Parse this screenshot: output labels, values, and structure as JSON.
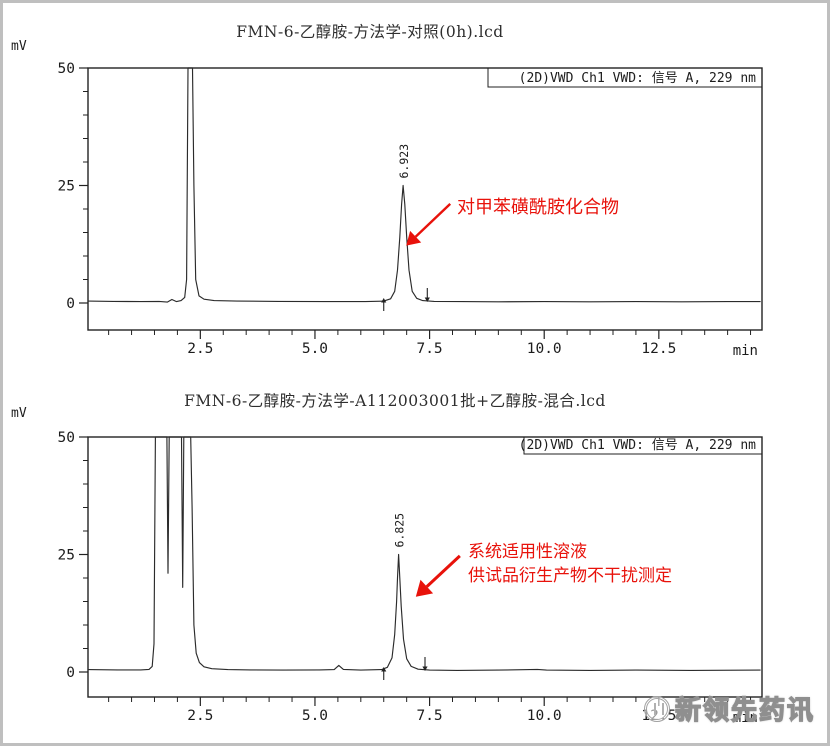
{
  "watermark": {
    "text": "新领先药讯"
  },
  "chart_data": [
    {
      "type": "line",
      "title": "FMN-6-乙醇胺-方法学-对照(0h).lcd",
      "signal_label": "(2D)VWD Ch1 VWD: 信号 A, 229 nm",
      "xlabel": "min",
      "ylabel": "mV",
      "xlim": [
        0.05,
        14.75
      ],
      "ylim": [
        0,
        50
      ],
      "grid": false,
      "xticks": {
        "major": [
          {
            "v": 2.5,
            "label": "2.5"
          },
          {
            "v": 5.0,
            "label": "5.0"
          },
          {
            "v": 7.5,
            "label": "7.5"
          },
          {
            "v": 10.0,
            "label": "10.0"
          },
          {
            "v": 12.5,
            "label": "12.5"
          }
        ],
        "minor_step": 0.5
      },
      "yticks": {
        "major": [
          {
            "v": 0,
            "label": "0"
          },
          {
            "v": 25,
            "label": "25"
          },
          {
            "v": 50,
            "label": "50"
          }
        ],
        "minor_step": 5
      },
      "peaks": [
        {
          "label": "6.923",
          "rt": 6.923,
          "height_mv": 25
        }
      ],
      "solvent_front": {
        "rt": 2.28,
        "clipped_at_mv": 50
      },
      "integration_markers": [
        {
          "dir": "up",
          "t": 6.5
        },
        {
          "dir": "down",
          "t": 7.45
        }
      ],
      "annotation": {
        "lines": [
          "对甲苯磺酰胺化合物"
        ],
        "color": "#e8120b",
        "arrow": {
          "from": {
            "t": 7.95,
            "mv": 21.1
          },
          "to": {
            "t": 6.99,
            "mv": 12.2
          }
        }
      },
      "trace": [
        [
          0.05,
          0.4
        ],
        [
          0.6,
          0.35
        ],
        [
          1.2,
          0.3
        ],
        [
          1.6,
          0.35
        ],
        [
          1.78,
          0.2
        ],
        [
          1.88,
          0.75
        ],
        [
          1.98,
          0.3
        ],
        [
          2.08,
          0.5
        ],
        [
          2.16,
          1.2
        ],
        [
          2.2,
          5
        ],
        [
          2.23,
          60
        ],
        [
          2.33,
          60
        ],
        [
          2.36,
          25
        ],
        [
          2.4,
          5
        ],
        [
          2.47,
          1.5
        ],
        [
          2.58,
          0.8
        ],
        [
          2.8,
          0.5
        ],
        [
          3.3,
          0.4
        ],
        [
          4.2,
          0.35
        ],
        [
          5.2,
          0.3
        ],
        [
          6.1,
          0.3
        ],
        [
          6.5,
          0.4
        ],
        [
          6.65,
          0.9
        ],
        [
          6.74,
          2.5
        ],
        [
          6.8,
          7
        ],
        [
          6.85,
          14
        ],
        [
          6.89,
          21
        ],
        [
          6.923,
          25
        ],
        [
          6.96,
          21
        ],
        [
          7.0,
          14
        ],
        [
          7.05,
          7
        ],
        [
          7.12,
          2.5
        ],
        [
          7.22,
          1
        ],
        [
          7.35,
          0.5
        ],
        [
          7.6,
          0.35
        ],
        [
          8.2,
          0.3
        ],
        [
          9.0,
          0.25
        ],
        [
          10.0,
          0.3
        ],
        [
          11.0,
          0.25
        ],
        [
          12.0,
          0.3
        ],
        [
          13.0,
          0.25
        ],
        [
          14.0,
          0.3
        ],
        [
          14.72,
          0.3
        ]
      ]
    },
    {
      "type": "line",
      "title": "FMN-6-乙醇胺-方法学-A112003001批+乙醇胺-混合.lcd",
      "signal_label": "(2D)VWD Ch1 VWD: 信号 A, 229 nm",
      "xlabel": "min",
      "ylabel": "mV",
      "xlim": [
        0.05,
        14.75
      ],
      "ylim": [
        0,
        50
      ],
      "grid": false,
      "xticks": {
        "major": [
          {
            "v": 2.5,
            "label": "2.5"
          },
          {
            "v": 5.0,
            "label": "5.0"
          },
          {
            "v": 7.5,
            "label": "7.5"
          },
          {
            "v": 10.0,
            "label": "10.0"
          },
          {
            "v": 12.5,
            "label": "12.5"
          }
        ],
        "minor_step": 0.5
      },
      "yticks": {
        "major": [
          {
            "v": 0,
            "label": "0"
          },
          {
            "v": 25,
            "label": "25"
          },
          {
            "v": 50,
            "label": "50"
          }
        ],
        "minor_step": 5
      },
      "peaks": [
        {
          "label": "6.825",
          "rt": 6.825,
          "height_mv": 25
        }
      ],
      "solvent_front": {
        "rt_range": [
          1.5,
          2.33
        ],
        "clipped_at_mv": 50,
        "valleys_mv": [
          21,
          18
        ]
      },
      "integration_markers": [
        {
          "dir": "up",
          "t": 6.5
        },
        {
          "dir": "down",
          "t": 7.4
        }
      ],
      "annotation": {
        "lines": [
          "系统适用性溶液",
          "供试品衍生产物不干扰测定"
        ],
        "color": "#e8120b",
        "arrow": {
          "from": {
            "t": 8.16,
            "mv": 24.7
          },
          "to": {
            "t": 7.2,
            "mv": 16.0
          }
        }
      },
      "trace": [
        [
          0.05,
          0.5
        ],
        [
          0.7,
          0.45
        ],
        [
          1.2,
          0.45
        ],
        [
          1.38,
          0.55
        ],
        [
          1.45,
          1.2
        ],
        [
          1.49,
          6
        ],
        [
          1.52,
          60
        ],
        [
          1.77,
          60
        ],
        [
          1.795,
          21
        ],
        [
          1.82,
          60
        ],
        [
          2.09,
          60
        ],
        [
          2.115,
          18
        ],
        [
          2.14,
          60
        ],
        [
          2.29,
          60
        ],
        [
          2.32,
          35
        ],
        [
          2.36,
          10
        ],
        [
          2.41,
          4
        ],
        [
          2.48,
          2
        ],
        [
          2.58,
          1.1
        ],
        [
          2.75,
          0.7
        ],
        [
          3.1,
          0.5
        ],
        [
          3.6,
          0.45
        ],
        [
          4.3,
          0.4
        ],
        [
          5.1,
          0.45
        ],
        [
          5.42,
          0.5
        ],
        [
          5.52,
          1.4
        ],
        [
          5.62,
          0.55
        ],
        [
          6.0,
          0.4
        ],
        [
          6.45,
          0.5
        ],
        [
          6.58,
          1
        ],
        [
          6.68,
          3
        ],
        [
          6.74,
          8
        ],
        [
          6.78,
          15
        ],
        [
          6.8,
          20
        ],
        [
          6.825,
          25
        ],
        [
          6.85,
          20
        ],
        [
          6.88,
          14
        ],
        [
          6.93,
          7
        ],
        [
          7.0,
          2.8
        ],
        [
          7.1,
          1.2
        ],
        [
          7.25,
          0.6
        ],
        [
          7.5,
          0.4
        ],
        [
          8.1,
          0.35
        ],
        [
          9.0,
          0.4
        ],
        [
          9.85,
          0.55
        ],
        [
          10.05,
          0.4
        ],
        [
          11.0,
          0.35
        ],
        [
          12.0,
          0.4
        ],
        [
          13.2,
          0.35
        ],
        [
          14.72,
          0.4
        ]
      ]
    }
  ]
}
